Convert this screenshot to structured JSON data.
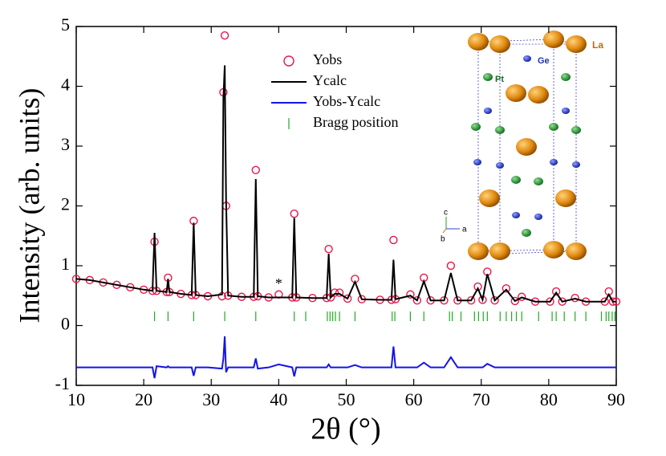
{
  "chart_data": {
    "type": "line",
    "xlabel": "2θ (°)",
    "ylabel": "Intensity (arb. units)",
    "xlim": [
      10,
      90
    ],
    "xticks": [
      10,
      20,
      30,
      40,
      50,
      60,
      70,
      80,
      90
    ],
    "ylim": [
      -1,
      5
    ],
    "yticks": [
      -1,
      0,
      1,
      2,
      3,
      4,
      5
    ],
    "x": [
      10,
      12,
      14,
      16,
      18,
      20,
      21.3,
      21.6,
      21.9,
      23.4,
      23.6,
      23.8,
      25.5,
      27.1,
      27.4,
      27.7,
      29.5,
      31.6,
      31.8,
      32.0,
      32.2,
      32.5,
      34.5,
      36.3,
      36.6,
      36.9,
      38.5,
      40,
      42.0,
      42.3,
      42.6,
      45,
      47.1,
      47.4,
      47.7,
      48.3,
      49.0,
      50.2,
      51.3,
      52.3,
      55,
      56.7,
      57.0,
      57.3,
      59.5,
      60.5,
      61.5,
      62.5,
      64.5,
      65.5,
      66.5,
      68.5,
      69.5,
      70.2,
      70.9,
      72.0,
      73.7,
      75,
      76,
      78,
      80.2,
      81.1,
      82,
      83.9,
      85.5,
      88.3,
      88.9,
      89.5,
      90
    ],
    "series": [
      {
        "name": "Yobs",
        "color": "#e8174a",
        "marker": "circle",
        "values": [
          0.78,
          0.76,
          0.72,
          0.68,
          0.64,
          0.6,
          0.58,
          1.4,
          0.58,
          0.56,
          0.8,
          0.56,
          0.53,
          0.51,
          1.75,
          0.51,
          0.49,
          0.49,
          3.9,
          4.85,
          2.0,
          0.5,
          0.48,
          0.48,
          2.6,
          0.49,
          0.47,
          0.52,
          0.47,
          1.87,
          0.47,
          0.46,
          0.46,
          1.28,
          0.47,
          0.55,
          0.55,
          0.45,
          0.78,
          0.44,
          0.43,
          0.43,
          1.43,
          0.44,
          0.52,
          0.42,
          0.8,
          0.42,
          0.42,
          1.0,
          0.42,
          0.42,
          0.65,
          0.43,
          0.9,
          0.42,
          0.62,
          0.41,
          0.48,
          0.4,
          0.4,
          0.57,
          0.4,
          0.46,
          0.4,
          0.4,
          0.57,
          0.4,
          0.4
        ]
      },
      {
        "name": "Ycalc",
        "color": "#000000",
        "marker": "line",
        "values": [
          0.78,
          0.76,
          0.72,
          0.68,
          0.64,
          0.6,
          0.58,
          1.55,
          0.58,
          0.56,
          0.78,
          0.56,
          0.53,
          0.51,
          1.72,
          0.51,
          0.49,
          0.52,
          3.8,
          4.35,
          2.1,
          0.5,
          0.48,
          0.48,
          2.45,
          0.49,
          0.47,
          0.47,
          0.47,
          1.8,
          0.47,
          0.46,
          0.46,
          1.2,
          0.47,
          0.53,
          0.53,
          0.45,
          0.73,
          0.44,
          0.43,
          0.43,
          1.1,
          0.44,
          0.5,
          0.42,
          0.74,
          0.42,
          0.42,
          0.88,
          0.42,
          0.42,
          0.62,
          0.43,
          0.86,
          0.42,
          0.6,
          0.41,
          0.47,
          0.4,
          0.4,
          0.55,
          0.4,
          0.45,
          0.4,
          0.4,
          0.52,
          0.4,
          0.4
        ]
      },
      {
        "name": "Yobs-Ycalc",
        "color": "#1414e6",
        "marker": "line",
        "values": [
          -0.7,
          -0.7,
          -0.7,
          -0.7,
          -0.7,
          -0.7,
          -0.7,
          -0.88,
          -0.68,
          -0.7,
          -0.68,
          -0.7,
          -0.7,
          -0.7,
          -0.84,
          -0.7,
          -0.7,
          -0.72,
          -0.55,
          -0.18,
          -0.78,
          -0.7,
          -0.7,
          -0.7,
          -0.55,
          -0.72,
          -0.7,
          -0.65,
          -0.7,
          -0.85,
          -0.7,
          -0.7,
          -0.7,
          -0.65,
          -0.7,
          -0.7,
          -0.7,
          -0.7,
          -0.66,
          -0.7,
          -0.7,
          -0.7,
          -0.35,
          -0.7,
          -0.7,
          -0.7,
          -0.62,
          -0.7,
          -0.7,
          -0.53,
          -0.7,
          -0.7,
          -0.7,
          -0.7,
          -0.64,
          -0.7,
          -0.7,
          -0.7,
          -0.7,
          -0.7,
          -0.7,
          -0.7,
          -0.7,
          -0.7,
          -0.7,
          -0.7,
          -0.7,
          -0.7,
          -0.7
        ]
      }
    ],
    "bragg": {
      "name": "Bragg position",
      "color": "#22aa22",
      "positions": [
        21.6,
        23.6,
        27.4,
        32.0,
        36.6,
        42.3,
        44.0,
        47.2,
        47.6,
        48.0,
        48.4,
        49.0,
        51.3,
        56.8,
        57.2,
        59.5,
        61.5,
        65.3,
        65.7,
        67.0,
        69.0,
        69.6,
        70.3,
        70.9,
        72.8,
        73.7,
        74.5,
        75.2,
        76.0,
        78.5,
        80.5,
        81.1,
        82.3,
        83.9,
        85.5,
        87.8,
        88.5,
        88.9,
        89.4,
        89.8
      ]
    },
    "annotation": "*",
    "inset_labels": {
      "la": "La",
      "ge": "Ge",
      "pt": "Pt",
      "axis_a": "a",
      "axis_b": "b",
      "axis_c": "c"
    }
  }
}
